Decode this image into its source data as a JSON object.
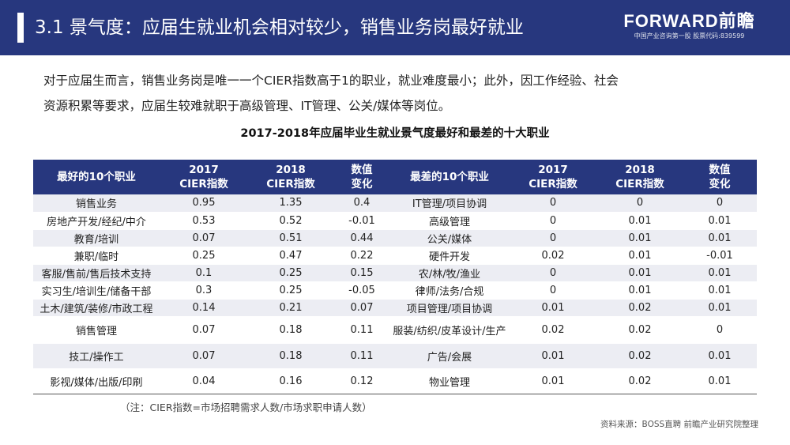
{
  "header": {
    "title": "3.1 景气度：应届生就业机会相对较少，销售业务岗最好就业",
    "logo_main": "FORWARD前瞻",
    "logo_sub": "中国产业咨询第一股 股票代码:839599"
  },
  "intro": {
    "line1": "对于应届生而言，销售业务岗是唯一一个CIER指数高于1的职业，就业难度最小；此外，因工作经验、社会",
    "line2": "资源积累等要求，应届生较难就职于高级管理、IT管理、公关/媒体等岗位。"
  },
  "table": {
    "title": "2017-2018年应届毕业生就业景气度最好和最差的十大职业",
    "headers": {
      "best": "最好的10个职业",
      "y2017_a": "2017",
      "y2017_b": "CIER指数",
      "y2018_a": "2018",
      "y2018_b": "CIER指数",
      "chg_a": "数值",
      "chg_b": "变化",
      "worst": "最差的10个职业"
    },
    "rows": [
      {
        "best": "销售业务",
        "b2017": "0.95",
        "b2018": "1.35",
        "bchg": "0.4",
        "worst": "IT管理/项目协调",
        "w2017": "0",
        "w2018": "0",
        "wchg": "0"
      },
      {
        "best": "房地产开发/经纪/中介",
        "b2017": "0.53",
        "b2018": "0.52",
        "bchg": "-0.01",
        "worst": "高级管理",
        "w2017": "0",
        "w2018": "0.01",
        "wchg": "0.01"
      },
      {
        "best": "教育/培训",
        "b2017": "0.07",
        "b2018": "0.51",
        "bchg": "0.44",
        "worst": "公关/媒体",
        "w2017": "0",
        "w2018": "0.01",
        "wchg": "0.01"
      },
      {
        "best": "兼职/临时",
        "b2017": "0.25",
        "b2018": "0.47",
        "bchg": "0.22",
        "worst": "硬件开发",
        "w2017": "0.02",
        "w2018": "0.01",
        "wchg": "-0.01"
      },
      {
        "best": "客服/售前/售后技术支持",
        "b2017": "0.1",
        "b2018": "0.25",
        "bchg": "0.15",
        "worst": "农/林/牧/渔业",
        "w2017": "0",
        "w2018": "0.01",
        "wchg": "0.01"
      },
      {
        "best": "实习生/培训生/储备干部",
        "b2017": "0.3",
        "b2018": "0.25",
        "bchg": "-0.05",
        "worst": "律师/法务/合规",
        "w2017": "0",
        "w2018": "0.01",
        "wchg": "0.01"
      },
      {
        "best": "土木/建筑/装修/市政工程",
        "b2017": "0.14",
        "b2018": "0.21",
        "bchg": "0.07",
        "worst": "项目管理/项目协调",
        "w2017": "0.01",
        "w2018": "0.02",
        "wchg": "0.01"
      },
      {
        "best": "销售管理",
        "b2017": "0.07",
        "b2018": "0.18",
        "bchg": "0.11",
        "worst": "服装/纺织/皮革设计/生产",
        "w2017": "0.02",
        "w2018": "0.02",
        "wchg": "0"
      },
      {
        "best": "技工/操作工",
        "b2017": "0.07",
        "b2018": "0.18",
        "bchg": "0.11",
        "worst": "广告/会展",
        "w2017": "0.01",
        "w2018": "0.02",
        "wchg": "0.01"
      },
      {
        "best": "影视/媒体/出版/印刷",
        "b2017": "0.04",
        "b2018": "0.16",
        "bchg": "0.12",
        "worst": "物业管理",
        "w2017": "0.01",
        "w2018": "0.02",
        "wchg": "0.01"
      }
    ]
  },
  "note": "（注：CIER指数=市场招聘需求人数/市场求职申请人数）",
  "source": "资料来源：BOSS直聘 前瞻产业研究院整理",
  "colors": {
    "header_bg": "#27377e",
    "stripe": "#ecedf3",
    "negative": "#e02020"
  }
}
